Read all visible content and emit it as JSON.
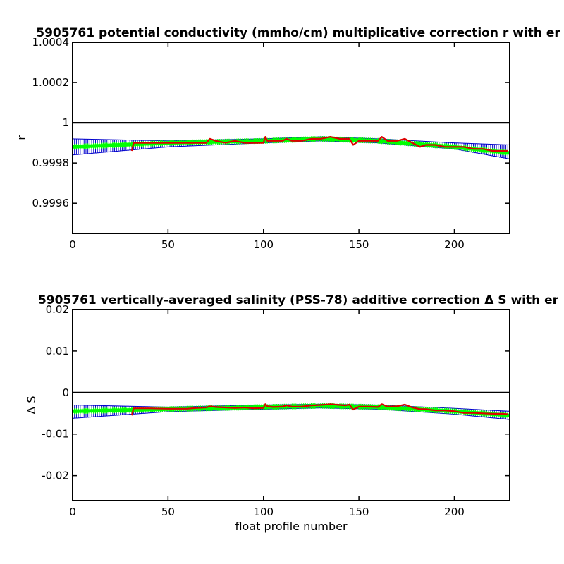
{
  "chart_data": [
    {
      "type": "line",
      "title": "5905761 potential conductivity (mmho/cm) multiplicative correction r with er",
      "xlabel": "",
      "ylabel": "r",
      "xlim": [
        0,
        229
      ],
      "ylim": [
        0.99945,
        1.0004
      ],
      "xticks": [
        "0",
        "50",
        "100",
        "150",
        "200"
      ],
      "xtick_values": [
        0,
        50,
        100,
        150,
        200
      ],
      "yticks": [
        "0.9996",
        "0.9998",
        "1",
        "1.0002",
        "1.0004"
      ],
      "ytick_values": [
        0.9996,
        0.9998,
        1.0,
        1.0002,
        1.0004
      ],
      "reference_line": 1.0,
      "fit_curve": {
        "x": [
          0,
          50,
          100,
          130,
          160,
          200,
          229
        ],
        "y": [
          0.99988,
          0.9999,
          0.99991,
          0.99992,
          0.99991,
          0.99988,
          0.99985
        ]
      },
      "error_band": {
        "x": [
          0,
          50,
          100,
          130,
          160,
          200,
          229
        ],
        "upper": [
          0.99992,
          0.99991,
          0.99992,
          0.99993,
          0.99992,
          0.9999,
          0.99989
        ],
        "lower": [
          0.99984,
          0.99988,
          0.9999,
          0.99991,
          0.9999,
          0.99987,
          0.99982
        ]
      },
      "profile_series": {
        "x": [
          31,
          32,
          40,
          50,
          60,
          65,
          70,
          72,
          75,
          80,
          85,
          90,
          95,
          100,
          101,
          102,
          105,
          110,
          112,
          115,
          120,
          125,
          130,
          135,
          140,
          143,
          145,
          147,
          150,
          155,
          160,
          162,
          165,
          170,
          174,
          178,
          182,
          185,
          190,
          195,
          200,
          205,
          210,
          215,
          220,
          225,
          228
        ],
        "y": [
          0.99986,
          0.9999,
          0.9999,
          0.9999,
          0.9999,
          0.9999,
          0.9999,
          0.99992,
          0.99991,
          0.9999,
          0.99991,
          0.9999,
          0.9999,
          0.9999,
          0.99993,
          0.99991,
          0.99991,
          0.99991,
          0.99992,
          0.99991,
          0.99991,
          0.99992,
          0.99992,
          0.99993,
          0.99992,
          0.99992,
          0.99992,
          0.99989,
          0.99991,
          0.99991,
          0.99991,
          0.99993,
          0.99991,
          0.99991,
          0.99992,
          0.9999,
          0.99988,
          0.99989,
          0.99989,
          0.99988,
          0.99988,
          0.99988,
          0.99987,
          0.99987,
          0.99986,
          0.99986,
          0.99986
        ]
      },
      "colors": {
        "fit": "#00ff00",
        "band": "#0000cc",
        "profile": "#dd0000",
        "reference": "#000000"
      }
    },
    {
      "type": "line",
      "title": "5905761 vertically-averaged salinity (PSS-78) additive correction Δ S with er",
      "xlabel": "float profile number",
      "ylabel": "Δ S",
      "xlim": [
        0,
        229
      ],
      "ylim": [
        -0.026,
        0.02
      ],
      "xticks": [
        "0",
        "50",
        "100",
        "150",
        "200"
      ],
      "xtick_values": [
        0,
        50,
        100,
        150,
        200
      ],
      "yticks": [
        "-0.02",
        "-0.01",
        "0",
        "0.01",
        "0.02"
      ],
      "ytick_values": [
        -0.02,
        -0.01,
        0,
        0.01,
        0.02
      ],
      "reference_line": 0,
      "fit_curve": {
        "x": [
          0,
          50,
          100,
          130,
          160,
          200,
          229
        ],
        "y": [
          -0.0045,
          -0.004,
          -0.0035,
          -0.0032,
          -0.0035,
          -0.0045,
          -0.0055
        ]
      },
      "error_band": {
        "x": [
          0,
          50,
          100,
          130,
          160,
          200,
          229
        ],
        "upper": [
          -0.003,
          -0.0035,
          -0.003,
          -0.0028,
          -0.003,
          -0.0038,
          -0.0045
        ],
        "lower": [
          -0.0062,
          -0.0046,
          -0.004,
          -0.0037,
          -0.004,
          -0.0052,
          -0.0065
        ]
      },
      "profile_series": {
        "x": [
          31,
          32,
          40,
          50,
          60,
          65,
          70,
          72,
          75,
          80,
          85,
          90,
          95,
          100,
          101,
          102,
          105,
          110,
          112,
          115,
          120,
          125,
          130,
          135,
          140,
          143,
          145,
          147,
          150,
          155,
          160,
          162,
          165,
          170,
          174,
          178,
          182,
          185,
          190,
          195,
          200,
          205,
          210,
          215,
          220,
          225,
          228
        ],
        "y": [
          -0.0055,
          -0.0038,
          -0.0038,
          -0.0039,
          -0.0039,
          -0.0037,
          -0.0036,
          -0.0033,
          -0.0035,
          -0.0036,
          -0.0037,
          -0.0036,
          -0.0038,
          -0.0037,
          -0.0028,
          -0.0033,
          -0.0035,
          -0.0034,
          -0.0031,
          -0.0034,
          -0.0034,
          -0.0031,
          -0.003,
          -0.0028,
          -0.003,
          -0.0031,
          -0.0029,
          -0.0041,
          -0.0034,
          -0.0034,
          -0.0035,
          -0.0028,
          -0.0034,
          -0.0033,
          -0.0029,
          -0.0036,
          -0.004,
          -0.004,
          -0.0043,
          -0.0043,
          -0.0045,
          -0.0049,
          -0.0049,
          -0.005,
          -0.0051,
          -0.0051,
          -0.0052
        ]
      },
      "colors": {
        "fit": "#00ff00",
        "band": "#0000cc",
        "profile": "#dd0000",
        "reference": "#000000"
      }
    }
  ]
}
